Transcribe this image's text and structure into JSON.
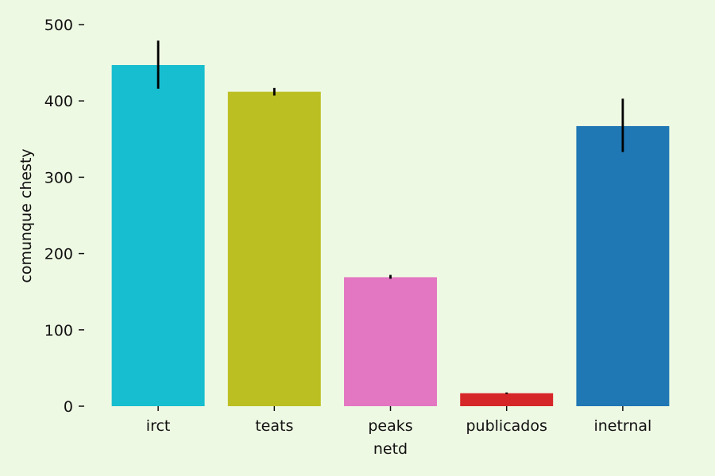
{
  "chart_data": {
    "type": "bar",
    "title": "",
    "xlabel": "netd",
    "ylabel": "comunque chesty",
    "ylim": [
      0,
      500
    ],
    "yticks": [
      0,
      100,
      200,
      300,
      400,
      500
    ],
    "grid": false,
    "legend": false,
    "categories": [
      "irct",
      "teats",
      "peaks",
      "publicados",
      "inetrnal"
    ],
    "values": [
      447,
      412,
      169,
      17,
      367
    ],
    "error_low": [
      416,
      407,
      167,
      16,
      333
    ],
    "error_high": [
      479,
      417,
      172,
      18,
      403
    ],
    "colors": [
      "#17becf",
      "#bcbf22",
      "#e377c2",
      "#d62728",
      "#1f77b4"
    ],
    "background": "#eef9e3"
  }
}
